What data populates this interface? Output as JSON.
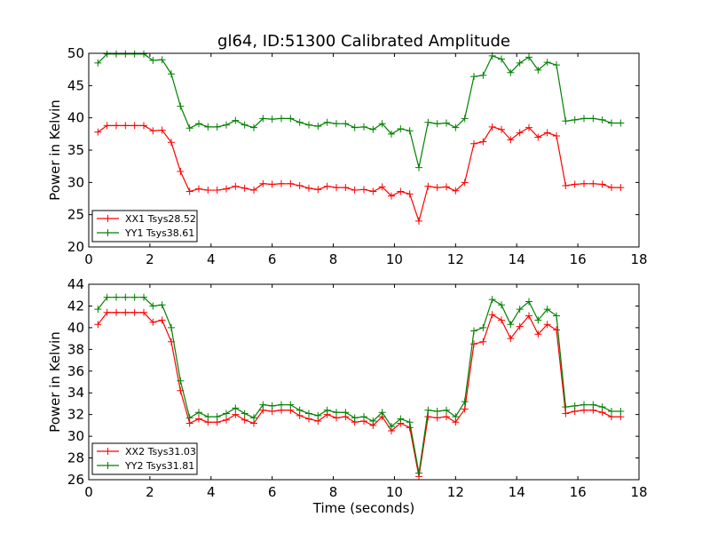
{
  "title": "gl64, ID:51300 Calibrated Amplitude",
  "chart_data": [
    {
      "type": "line",
      "xlabel": "",
      "ylabel": "Power in Kelvin",
      "xlim": [
        0,
        18
      ],
      "ylim": [
        20,
        50
      ],
      "xticks": [
        0,
        2,
        4,
        6,
        8,
        10,
        12,
        14,
        16,
        18
      ],
      "yticks": [
        20,
        25,
        30,
        35,
        40,
        45,
        50
      ],
      "legend_position": "lower-left",
      "x": [
        0.3,
        0.6,
        0.9,
        1.2,
        1.5,
        1.8,
        2.1,
        2.4,
        2.7,
        3.0,
        3.3,
        3.6,
        3.9,
        4.2,
        4.5,
        4.8,
        5.1,
        5.4,
        5.7,
        6.0,
        6.3,
        6.6,
        6.9,
        7.2,
        7.5,
        7.8,
        8.1,
        8.4,
        8.7,
        9.0,
        9.3,
        9.6,
        9.9,
        10.2,
        10.5,
        10.8,
        11.1,
        11.4,
        11.7,
        12.0,
        12.3,
        12.6,
        12.9,
        13.2,
        13.5,
        13.8,
        14.1,
        14.4,
        14.7,
        15.0,
        15.3,
        15.6,
        15.9,
        16.2,
        16.5,
        16.8,
        17.1,
        17.4
      ],
      "series": [
        {
          "name": "XX1 Tsys28.52",
          "color": "#ff0000",
          "values": [
            37.8,
            38.8,
            38.8,
            38.8,
            38.8,
            38.8,
            38.0,
            38.1,
            36.2,
            31.7,
            28.6,
            29.0,
            28.8,
            28.8,
            29.0,
            29.4,
            29.1,
            28.8,
            29.8,
            29.7,
            29.8,
            29.8,
            29.5,
            29.1,
            28.9,
            29.4,
            29.2,
            29.2,
            28.8,
            28.9,
            28.6,
            29.3,
            27.9,
            28.6,
            28.2,
            24.0,
            29.4,
            29.2,
            29.3,
            28.7,
            30.0,
            36.0,
            36.3,
            38.6,
            38.2,
            36.6,
            37.7,
            38.5,
            37.0,
            37.7,
            37.2,
            29.5,
            29.7,
            29.8,
            29.8,
            29.7,
            29.2,
            29.2
          ]
        },
        {
          "name": "YY1 Tsys38.61",
          "color": "#008000",
          "values": [
            48.5,
            49.9,
            49.9,
            49.9,
            49.9,
            49.9,
            48.9,
            49.0,
            46.8,
            41.8,
            38.4,
            39.1,
            38.6,
            38.6,
            38.9,
            39.6,
            38.9,
            38.5,
            39.9,
            39.8,
            39.9,
            39.9,
            39.3,
            38.9,
            38.7,
            39.3,
            39.1,
            39.1,
            38.5,
            38.6,
            38.2,
            39.1,
            37.5,
            38.3,
            38.0,
            32.3,
            39.3,
            39.1,
            39.2,
            38.5,
            39.9,
            46.4,
            46.6,
            49.6,
            49.1,
            47.0,
            48.5,
            49.4,
            47.4,
            48.6,
            48.2,
            39.5,
            39.7,
            39.9,
            39.9,
            39.7,
            39.2,
            39.2
          ]
        }
      ]
    },
    {
      "type": "line",
      "xlabel": "Time (seconds)",
      "ylabel": "Power in Kelvin",
      "xlim": [
        0,
        18
      ],
      "ylim": [
        26,
        44
      ],
      "xticks": [
        0,
        2,
        4,
        6,
        8,
        10,
        12,
        14,
        16,
        18
      ],
      "yticks": [
        26,
        28,
        30,
        32,
        34,
        36,
        38,
        40,
        42,
        44
      ],
      "legend_position": "lower-left",
      "x": [
        0.3,
        0.6,
        0.9,
        1.2,
        1.5,
        1.8,
        2.1,
        2.4,
        2.7,
        3.0,
        3.3,
        3.6,
        3.9,
        4.2,
        4.5,
        4.8,
        5.1,
        5.4,
        5.7,
        6.0,
        6.3,
        6.6,
        6.9,
        7.2,
        7.5,
        7.8,
        8.1,
        8.4,
        8.7,
        9.0,
        9.3,
        9.6,
        9.9,
        10.2,
        10.5,
        10.8,
        11.1,
        11.4,
        11.7,
        12.0,
        12.3,
        12.6,
        12.9,
        13.2,
        13.5,
        13.8,
        14.1,
        14.4,
        14.7,
        15.0,
        15.3,
        15.6,
        15.9,
        16.2,
        16.5,
        16.8,
        17.1,
        17.4
      ],
      "series": [
        {
          "name": "XX2 Tsys31.03",
          "color": "#ff0000",
          "values": [
            40.3,
            41.4,
            41.4,
            41.4,
            41.4,
            41.4,
            40.5,
            40.7,
            38.7,
            34.2,
            31.2,
            31.6,
            31.3,
            31.3,
            31.5,
            32.0,
            31.5,
            31.2,
            32.4,
            32.3,
            32.4,
            32.4,
            31.9,
            31.6,
            31.4,
            32.0,
            31.7,
            31.8,
            31.3,
            31.4,
            31.0,
            31.8,
            30.5,
            31.2,
            30.8,
            26.3,
            31.8,
            31.7,
            31.8,
            31.3,
            32.5,
            38.5,
            38.7,
            41.2,
            40.7,
            39.0,
            40.1,
            41.1,
            39.4,
            40.3,
            39.8,
            32.1,
            32.3,
            32.4,
            32.4,
            32.2,
            31.8,
            31.8
          ]
        },
        {
          "name": "YY2 Tsys31.81",
          "color": "#008000",
          "values": [
            41.7,
            42.8,
            42.8,
            42.8,
            42.8,
            42.8,
            42.0,
            42.1,
            40.0,
            35.1,
            31.7,
            32.2,
            31.8,
            31.8,
            32.1,
            32.6,
            32.1,
            31.7,
            32.9,
            32.8,
            32.9,
            32.9,
            32.4,
            32.1,
            31.9,
            32.4,
            32.2,
            32.2,
            31.7,
            31.8,
            31.4,
            32.2,
            30.9,
            31.6,
            31.3,
            26.6,
            32.4,
            32.3,
            32.4,
            31.8,
            33.2,
            39.7,
            40.0,
            42.6,
            42.1,
            40.3,
            41.7,
            42.4,
            40.7,
            41.7,
            41.1,
            32.7,
            32.8,
            32.9,
            32.9,
            32.7,
            32.3,
            32.3
          ]
        }
      ]
    }
  ]
}
